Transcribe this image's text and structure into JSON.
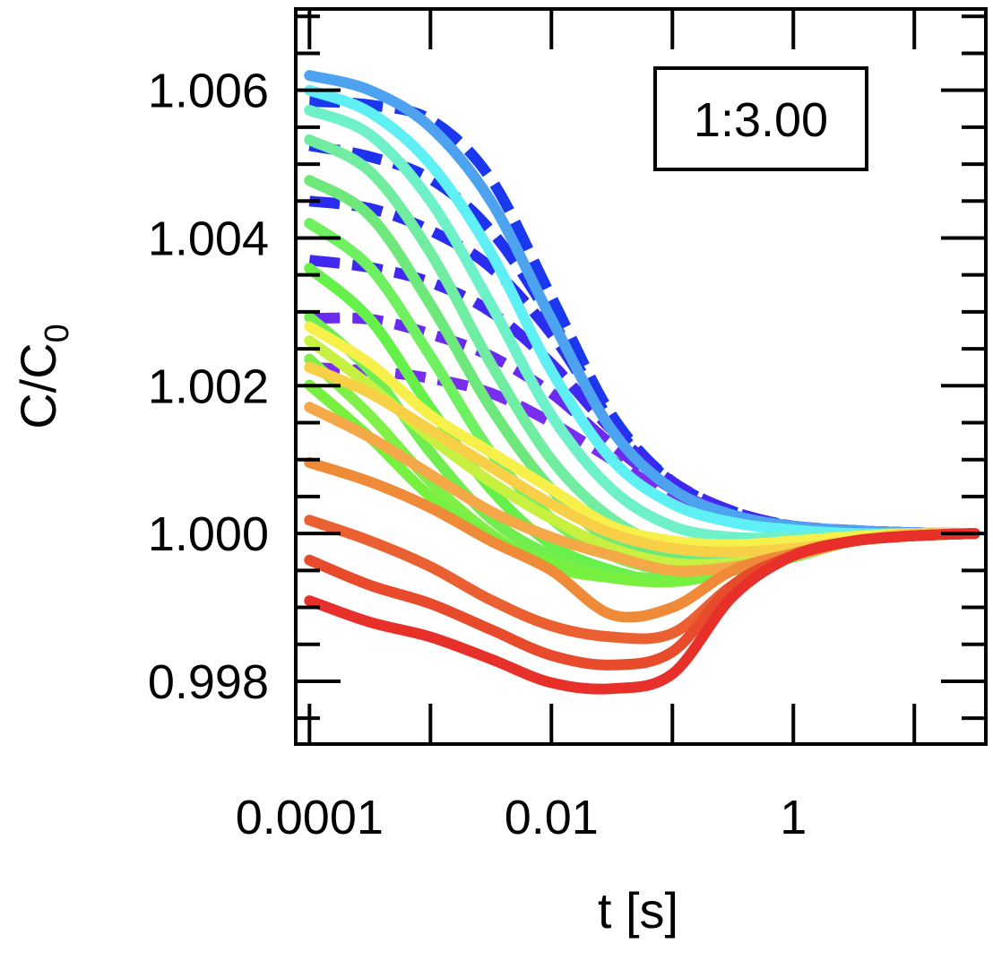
{
  "chart_data": {
    "type": "line",
    "xscale": "log",
    "xlabel": "t [s]",
    "ylabel": "C/C",
    "ylabel_subscript": "0",
    "annotation": "1:3.00",
    "xlim": [
      7.7e-05,
      39
    ],
    "ylim": [
      0.99715,
      1.0071
    ],
    "x_tick_labels": [
      {
        "value": 0.0001,
        "label": "0.0001"
      },
      {
        "value": 0.01,
        "label": "0.01"
      },
      {
        "value": 1,
        "label": "1"
      }
    ],
    "y_tick_labels": [
      {
        "value": 1.006,
        "label": "1.006"
      },
      {
        "value": 1.004,
        "label": "1.004"
      },
      {
        "value": 1.002,
        "label": "1.002"
      },
      {
        "value": 1.0,
        "label": "1.000"
      },
      {
        "value": 0.998,
        "label": "0.998"
      }
    ],
    "grid": false,
    "legend": "none",
    "x": [
      0.0001,
      0.000316,
      0.001,
      0.00316,
      0.01,
      0.0316,
      0.1,
      0.316,
      1,
      3.16,
      10,
      31.6
    ],
    "series": [
      {
        "color": "#1a38ee",
        "dashed": true,
        "values": [
          1.00585,
          1.0058,
          1.0056,
          1.0048,
          1.0032,
          1.0016,
          1.0007,
          1.0003,
          1.0001,
          1.00004,
          1.00001,
          1.0
        ]
      },
      {
        "color": "#1f32ee",
        "dashed": true,
        "values": [
          1.00525,
          1.0051,
          1.0048,
          1.0041,
          1.0029,
          1.0015,
          1.0007,
          1.0003,
          1.0001,
          1.00004,
          1.00001,
          1.0
        ]
      },
      {
        "color": "#2a2cee",
        "dashed": true,
        "values": [
          1.0045,
          1.0044,
          1.0041,
          1.0036,
          1.0027,
          1.0015,
          1.0007,
          1.0003,
          1.0001,
          1.00004,
          1.00001,
          1.0
        ]
      },
      {
        "color": "#4028f0",
        "dashed": true,
        "values": [
          1.0037,
          1.0036,
          1.0034,
          1.003,
          1.0023,
          1.0014,
          1.0007,
          1.0003,
          1.0001,
          1.00004,
          1.00001,
          1.0
        ]
      },
      {
        "color": "#6a2af0",
        "dashed": true,
        "values": [
          1.00291,
          1.0029,
          1.0027,
          1.0024,
          1.0019,
          1.0012,
          1.0006,
          1.00025,
          1.0001,
          1.00004,
          1.00001,
          1.0
        ]
      },
      {
        "color": "#7a2cf0",
        "dashed": true,
        "values": [
          1.00225,
          1.0022,
          1.0021,
          1.0019,
          1.0015,
          1.001,
          1.0005,
          1.0002,
          1.0001,
          1.00004,
          1.00001,
          1.0
        ]
      },
      {
        "color": "#4da3f0",
        "dashed": false,
        "values": [
          1.0062,
          1.006,
          1.0055,
          1.0045,
          1.0029,
          1.0014,
          1.0006,
          1.00025,
          1.0001,
          1.00004,
          1.00001,
          1.0
        ]
      },
      {
        "color": "#5ef0f5",
        "dashed": false,
        "values": [
          1.006,
          1.0057,
          1.005,
          1.0038,
          1.0022,
          1.001,
          1.0004,
          1.00015,
          1.00005,
          1.0,
          1.0,
          1.0
        ]
      },
      {
        "color": "#6ef0c8",
        "dashed": false,
        "values": [
          1.00573,
          1.0054,
          1.0045,
          1.0031,
          1.0016,
          1.0006,
          1.0001,
          0.99995,
          0.99995,
          0.99998,
          1.0,
          1.0
        ]
      },
      {
        "color": "#70eda0",
        "dashed": false,
        "values": [
          1.00533,
          1.0049,
          1.0038,
          1.0023,
          1.001,
          1.0002,
          0.9998,
          0.9997,
          0.9998,
          0.99993,
          0.99998,
          1.0
        ]
      },
      {
        "color": "#6ee87a",
        "dashed": false,
        "values": [
          1.00478,
          1.0043,
          1.0031,
          1.0017,
          1.0006,
          0.9999,
          0.99965,
          0.9996,
          0.99975,
          0.9999,
          0.99997,
          1.0
        ]
      },
      {
        "color": "#6ef060",
        "dashed": false,
        "values": [
          1.0042,
          1.0036,
          1.0024,
          1.0011,
          1.0002,
          0.9997,
          0.9995,
          0.99955,
          0.9997,
          0.9999,
          0.99997,
          1.0
        ]
      },
      {
        "color": "#66f04a",
        "dashed": false,
        "values": [
          1.00359,
          1.0029,
          1.0017,
          1.0006,
          0.99985,
          0.9995,
          0.99935,
          0.9995,
          0.99968,
          0.9999,
          0.99997,
          1.0
        ]
      },
      {
        "color": "#70ee50",
        "dashed": false,
        "values": [
          1.00293,
          1.0022,
          1.0011,
          1.0002,
          0.9997,
          0.99945,
          0.9994,
          0.9995,
          0.9997,
          0.9999,
          0.99997,
          1.0
        ]
      },
      {
        "color": "#80f048",
        "dashed": false,
        "values": [
          1.00236,
          1.0016,
          1.0007,
          1.0,
          0.99955,
          0.9994,
          0.99935,
          0.9995,
          0.9997,
          0.9999,
          0.99997,
          1.0
        ]
      },
      {
        "color": "#78f040",
        "dashed": false,
        "values": [
          1.00201,
          1.0013,
          1.0005,
          0.99995,
          0.9996,
          0.9994,
          0.99935,
          0.9995,
          0.9997,
          0.9999,
          0.99997,
          1.0
        ]
      },
      {
        "color": "#f8f04a",
        "dashed": false,
        "values": [
          1.0028,
          1.0023,
          1.0016,
          1.0011,
          1.0006,
          1.0001,
          0.9999,
          0.99985,
          0.9999,
          0.99996,
          1.0,
          1.0
        ]
      },
      {
        "color": "#c8f040",
        "dashed": false,
        "values": [
          1.00261,
          1.002,
          1.0013,
          1.0007,
          1.0002,
          0.9998,
          0.9996,
          0.9996,
          0.9997,
          0.9999,
          0.99997,
          1.0
        ]
      },
      {
        "color": "#f8d048",
        "dashed": false,
        "values": [
          1.00225,
          1.0019,
          1.0014,
          1.0009,
          1.0004,
          1.0,
          0.9998,
          0.99975,
          0.9998,
          0.9999,
          1.0,
          1.0
        ]
      },
      {
        "color": "#f5a848",
        "dashed": false,
        "values": [
          1.00171,
          1.0013,
          1.0008,
          1.0003,
          0.99995,
          0.9997,
          0.9995,
          0.99955,
          0.9997,
          0.9999,
          0.99997,
          1.0
        ]
      },
      {
        "color": "#ee8a38",
        "dashed": false,
        "values": [
          1.00096,
          1.0007,
          1.00035,
          0.9999,
          0.9995,
          0.9989,
          0.999,
          0.9995,
          0.99973,
          0.9999,
          0.99997,
          1.0
        ]
      },
      {
        "color": "#ea6030",
        "dashed": false,
        "values": [
          1.00018,
          0.9999,
          0.99955,
          0.9991,
          0.99875,
          0.9986,
          0.99865,
          0.9993,
          0.9997,
          0.9999,
          0.99997,
          1.0
        ]
      },
      {
        "color": "#e84a2c",
        "dashed": false,
        "values": [
          0.99964,
          0.9993,
          0.99905,
          0.9987,
          0.99835,
          0.99822,
          0.9984,
          0.9993,
          0.9997,
          0.9999,
          0.99997,
          1.0
        ]
      },
      {
        "color": "#e8302a",
        "dashed": false,
        "values": [
          0.99909,
          0.9988,
          0.9986,
          0.9983,
          0.99798,
          0.9979,
          0.9981,
          0.99915,
          0.9997,
          0.9999,
          0.99997,
          1.0
        ]
      }
    ]
  }
}
